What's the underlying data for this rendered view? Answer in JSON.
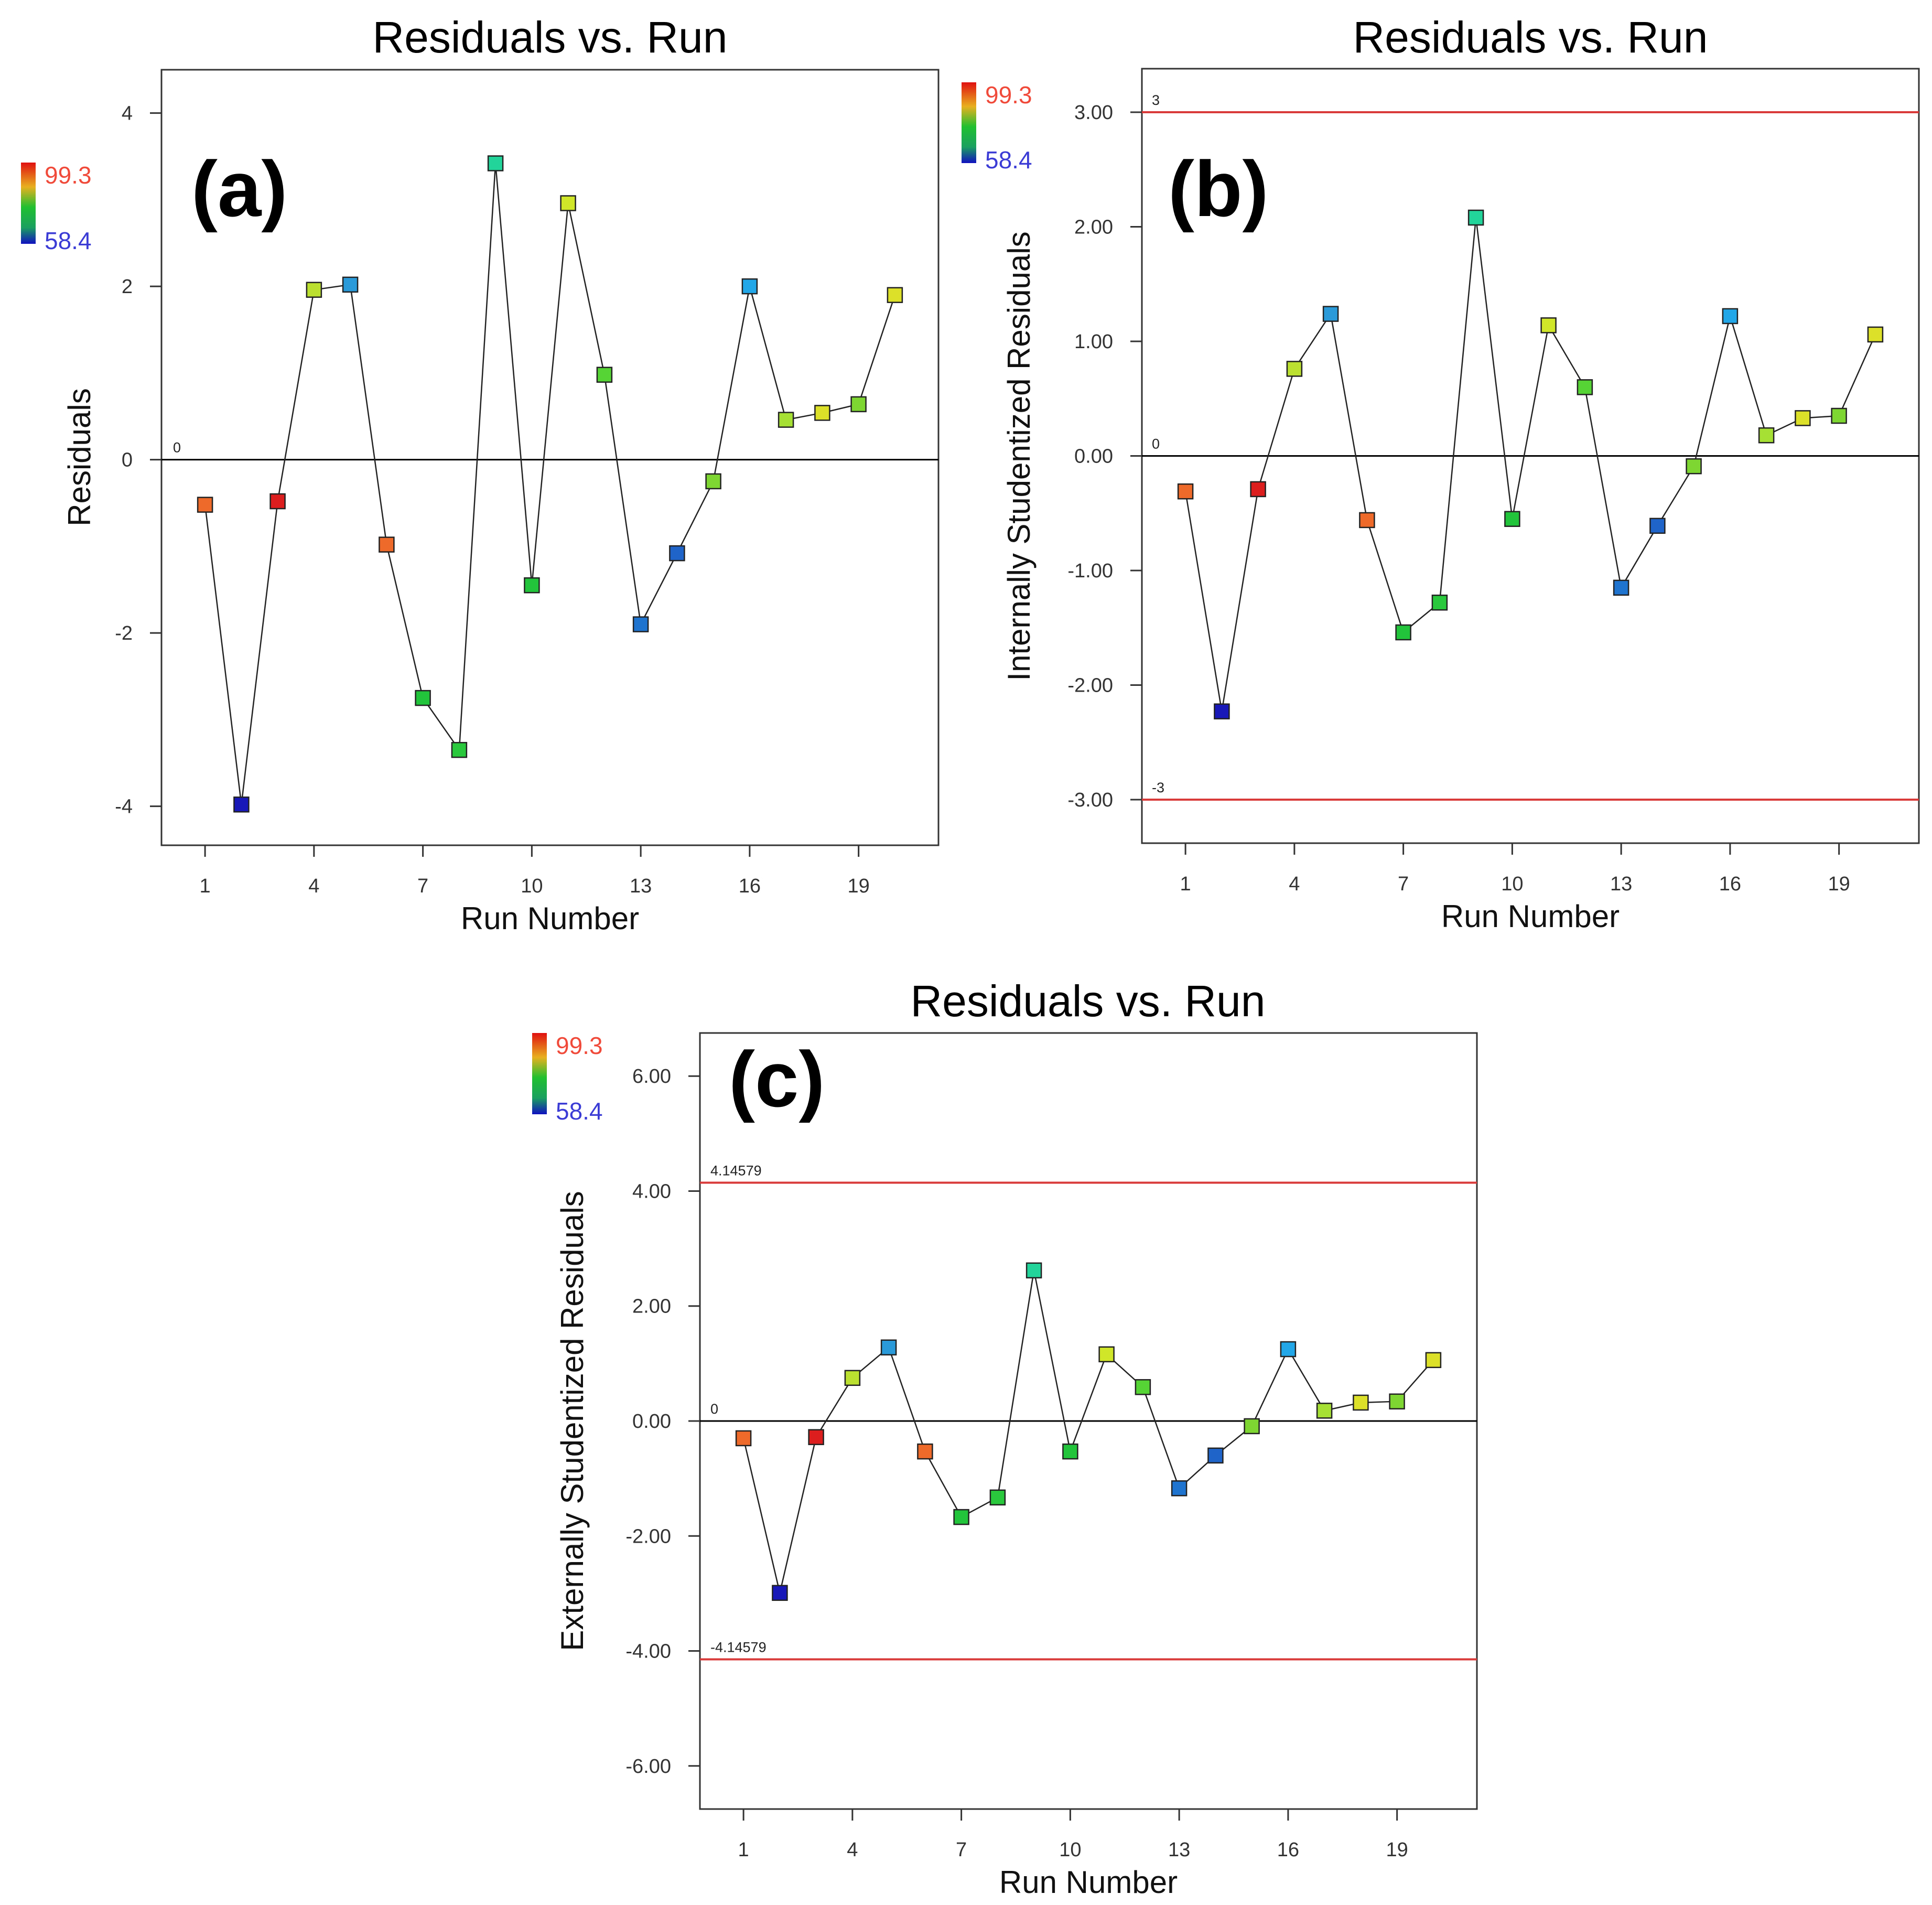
{
  "chart_data": [
    {
      "type": "scatter",
      "panel_label": "(a)",
      "title": "Residuals vs. Run",
      "xlabel": "Run Number",
      "ylabel": "Residuals",
      "xlim": [
        -0.2,
        21.2
      ],
      "ylim": [
        -4.45,
        4.5
      ],
      "xticks": [
        1,
        4,
        7,
        10,
        13,
        16,
        19
      ],
      "yticks": [
        -4,
        -2,
        0,
        2,
        4
      ],
      "ytick_labels": [
        "-4",
        "-2",
        "0",
        "2",
        "4"
      ],
      "reference_lines": [
        {
          "value": 0,
          "label": "0",
          "color": "#000000"
        }
      ],
      "colorbar": {
        "high": "99.3",
        "low": "58.4"
      },
      "x": [
        1,
        2,
        3,
        4,
        5,
        6,
        7,
        8,
        9,
        10,
        11,
        12,
        13,
        14,
        15,
        16,
        17,
        18,
        19,
        20
      ],
      "y": [
        -0.52,
        -3.98,
        -0.48,
        1.96,
        2.02,
        -0.98,
        -2.75,
        -3.35,
        3.42,
        -1.45,
        2.96,
        0.98,
        -1.9,
        -1.08,
        -0.25,
        2.0,
        0.46,
        0.54,
        0.64,
        1.9
      ],
      "colors": [
        "#ee6a2a",
        "#1818b8",
        "#dc1e1e",
        "#bbe030",
        "#2a9ad8",
        "#ee6a2a",
        "#22c43c",
        "#2ac83c",
        "#22d49a",
        "#22c43c",
        "#d0e628",
        "#56d436",
        "#1f74d0",
        "#1f64c8",
        "#7ed632",
        "#22a8e8",
        "#a6e034",
        "#dce028",
        "#7ed632",
        "#dce028"
      ]
    },
    {
      "type": "scatter",
      "panel_label": "(b)",
      "title": "Residuals vs. Run",
      "xlabel": "Run Number",
      "ylabel": "Internally Studentized Residuals",
      "xlim": [
        -0.2,
        21.2
      ],
      "ylim": [
        -3.38,
        3.38
      ],
      "xticks": [
        1,
        4,
        7,
        10,
        13,
        16,
        19
      ],
      "yticks": [
        -3,
        -2,
        -1,
        0,
        1,
        2,
        3
      ],
      "ytick_labels": [
        "-3.00",
        "-2.00",
        "-1.00",
        "0.00",
        "1.00",
        "2.00",
        "3.00"
      ],
      "reference_lines": [
        {
          "value": 3,
          "label": "3",
          "color": "#d93a3a"
        },
        {
          "value": 0,
          "label": "0",
          "color": "#000000"
        },
        {
          "value": -3,
          "label": "-3",
          "color": "#d93a3a"
        }
      ],
      "colorbar": {
        "high": "99.3",
        "low": "58.4"
      },
      "x": [
        1,
        2,
        3,
        4,
        5,
        6,
        7,
        8,
        9,
        10,
        11,
        12,
        13,
        14,
        15,
        16,
        17,
        18,
        19,
        20
      ],
      "y": [
        -0.31,
        -2.23,
        -0.29,
        0.76,
        1.24,
        -0.56,
        -1.54,
        -1.28,
        2.08,
        -0.55,
        1.14,
        0.6,
        -1.15,
        -0.61,
        -0.09,
        1.22,
        0.18,
        0.33,
        0.35,
        1.06
      ],
      "colors": [
        "#ee6a2a",
        "#1818b8",
        "#dc1e1e",
        "#bbe030",
        "#2a9ad8",
        "#ee6a2a",
        "#22c43c",
        "#2ac83c",
        "#22d49a",
        "#22c43c",
        "#d0e628",
        "#56d436",
        "#1f74d0",
        "#1f64c8",
        "#7ed632",
        "#22a8e8",
        "#a6e034",
        "#dce028",
        "#7ed632",
        "#dce028"
      ]
    },
    {
      "type": "scatter",
      "panel_label": "(c)",
      "title": "Residuals vs. Run",
      "xlabel": "Run Number",
      "ylabel": "Externally Studentized Residuals",
      "xlim": [
        -0.2,
        21.2
      ],
      "ylim": [
        -6.75,
        6.75
      ],
      "xticks": [
        1,
        4,
        7,
        10,
        13,
        16,
        19
      ],
      "yticks": [
        -6,
        -4,
        -2,
        0,
        2,
        4,
        6
      ],
      "ytick_labels": [
        "-6.00",
        "-4.00",
        "-2.00",
        "0.00",
        "2.00",
        "4.00",
        "6.00"
      ],
      "reference_lines": [
        {
          "value": 4.14579,
          "label": "4.14579",
          "color": "#d93a3a"
        },
        {
          "value": 0,
          "label": "0",
          "color": "#000000"
        },
        {
          "value": -4.14579,
          "label": "-4.14579",
          "color": "#d93a3a"
        }
      ],
      "colorbar": {
        "high": "99.3",
        "low": "58.4"
      },
      "x": [
        1,
        2,
        3,
        4,
        5,
        6,
        7,
        8,
        9,
        10,
        11,
        12,
        13,
        14,
        15,
        16,
        17,
        18,
        19,
        20
      ],
      "y": [
        -0.3,
        -2.99,
        -0.28,
        0.75,
        1.28,
        -0.53,
        -1.67,
        -1.33,
        2.62,
        -0.53,
        1.16,
        0.59,
        -1.17,
        -0.6,
        -0.09,
        1.25,
        0.18,
        0.32,
        0.34,
        1.06
      ],
      "colors": [
        "#ee6a2a",
        "#1818b8",
        "#dc1e1e",
        "#bbe030",
        "#2a9ad8",
        "#ee6a2a",
        "#22c43c",
        "#2ac83c",
        "#22d49a",
        "#22c43c",
        "#d0e628",
        "#56d436",
        "#1f74d0",
        "#1f64c8",
        "#7ed632",
        "#22a8e8",
        "#a6e034",
        "#dce028",
        "#7ed632",
        "#dce028"
      ]
    }
  ]
}
